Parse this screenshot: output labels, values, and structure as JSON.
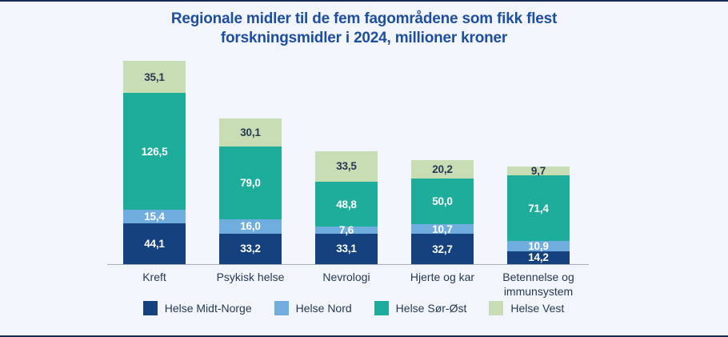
{
  "page": {
    "background_color": "#f2f5fb",
    "edge_border_color": "#132c52",
    "title_color": "#1d4f9e",
    "axis_line_color": "#a9adb8",
    "text_color": "#263852"
  },
  "chart_data": {
    "type": "bar",
    "stacked": true,
    "title": "Regionale midler til de fem fagområdene som fikk flest forskningsmidler i 2024, millioner kroner",
    "title_line1": "Regionale midler til de fem fagområdene som fikk flest",
    "title_line2": "forskningsmidler i 2024, millioner kroner",
    "unit": "millioner kroner",
    "grid": false,
    "y_axis_visible": false,
    "legend_position": "bottom",
    "categories": [
      "Kreft",
      "Psykisk helse",
      "Nevrologi",
      "Hjerte og kar",
      "Betennelse og\nimmunsystem"
    ],
    "series": [
      {
        "name": "Helse Midt-Norge",
        "color": "#15417e",
        "label_color": "#ffffff",
        "values": [
          44.1,
          33.2,
          33.1,
          32.7,
          14.2
        ],
        "labels": [
          "44,1",
          "33,2",
          "33,1",
          "32,7",
          "14,2"
        ]
      },
      {
        "name": "Helse Nord",
        "color": "#6fadde",
        "label_color": "#ffffff",
        "values": [
          15.4,
          16.0,
          7.6,
          10.7,
          10.9
        ],
        "labels": [
          "15,4",
          "16,0",
          "7,6",
          "10,7",
          "10,9"
        ]
      },
      {
        "name": "Helse Sør-Øst",
        "color": "#1fad9b",
        "label_color": "#ffffff",
        "values": [
          126.5,
          79.0,
          48.8,
          50.0,
          71.4
        ],
        "labels": [
          "126,5",
          "79,0",
          "48,8",
          "50,0",
          "71,4"
        ]
      },
      {
        "name": "Helse Vest",
        "color": "#c9ddb5",
        "label_color": "#263852",
        "values": [
          35.1,
          30.1,
          33.5,
          20.2,
          9.7
        ],
        "labels": [
          "35,1",
          "30,1",
          "33,5",
          "20,2",
          "9,7"
        ]
      }
    ]
  }
}
